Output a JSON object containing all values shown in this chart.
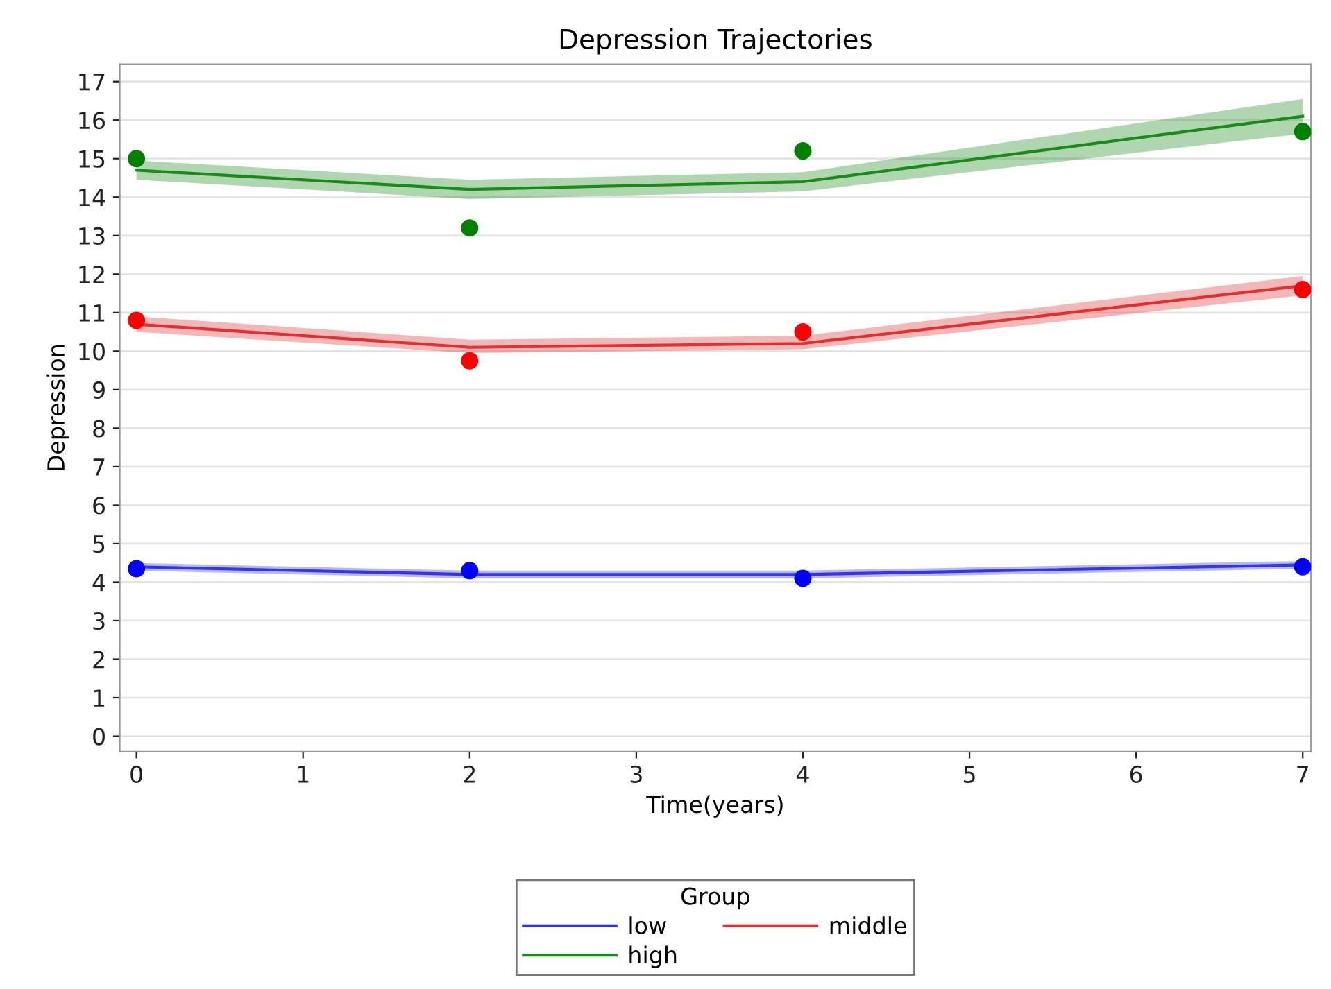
{
  "chart_data": {
    "type": "line",
    "title": "Depression Trajectories",
    "xlabel": "Time(years)",
    "ylabel": "Depression",
    "legend_title": "Group",
    "x": [
      0,
      2,
      4,
      7
    ],
    "series": [
      {
        "name": "low",
        "color": "#3535e8",
        "values": [
          4.4,
          4.2,
          4.2,
          4.45
        ],
        "lower": [
          4.3,
          4.1,
          4.1,
          4.35
        ],
        "upper": [
          4.5,
          4.3,
          4.3,
          4.55
        ]
      },
      {
        "name": "middle",
        "color": "#e03030",
        "values": [
          10.7,
          10.1,
          10.2,
          11.7
        ],
        "lower": [
          10.5,
          9.95,
          10.05,
          11.45
        ],
        "upper": [
          10.9,
          10.3,
          10.4,
          11.95
        ]
      },
      {
        "name": "high",
        "color": "#1a8a1a",
        "values": [
          14.7,
          14.2,
          14.4,
          16.1
        ],
        "lower": [
          14.45,
          13.95,
          14.15,
          15.65
        ],
        "upper": [
          14.95,
          14.45,
          14.65,
          16.55
        ]
      },
      {
        "type": "scatter",
        "color": "#0000ff",
        "marker": "circle",
        "values": [
          4.35,
          4.3,
          4.1,
          4.4
        ]
      },
      {
        "type": "scatter",
        "color": "#ff0000",
        "marker": "circle",
        "values": [
          10.8,
          9.75,
          10.5,
          11.6
        ]
      },
      {
        "type": "scatter",
        "color": "#008000",
        "marker": "circle",
        "values": [
          15.0,
          13.2,
          15.2,
          15.7
        ]
      }
    ],
    "xlim": [
      -0.1,
      7.05
    ],
    "xticks": [
      0,
      1,
      2,
      3,
      4,
      5,
      6,
      7
    ],
    "ylim": [
      -0.4,
      17.45
    ],
    "yticks": [
      0,
      1,
      2,
      3,
      4,
      5,
      6,
      7,
      8,
      9,
      10,
      11,
      12,
      13,
      14,
      15,
      16,
      17
    ],
    "grid": "y",
    "legend": "bottom"
  }
}
